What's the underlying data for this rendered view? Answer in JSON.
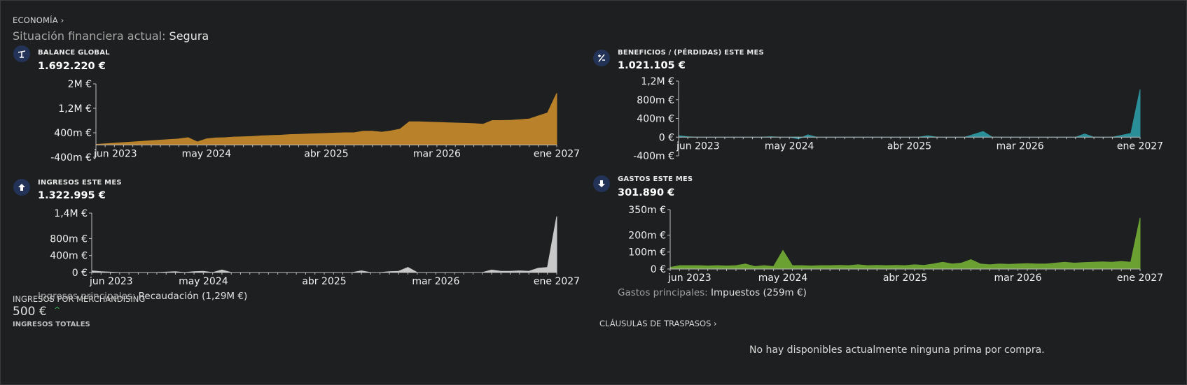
{
  "header": {
    "section_link": "ECONOMÍA ›"
  },
  "status": {
    "label": "Situación financiera actual: ",
    "value": "Segura"
  },
  "panels": {
    "balance": {
      "title": "BALANCE GLOBAL",
      "value": "1.692.220 €",
      "icon": "balance-scale-icon",
      "color": "#b9822a"
    },
    "profit": {
      "title": "BENEFICIOS / (PÉRDIDAS) ESTE MES",
      "value": "1.021.105 €",
      "icon": "plus-minus-icon",
      "color": "#2a8f98"
    },
    "income": {
      "title": "INGRESOS ESTE MES",
      "value": "1.322.995 €",
      "icon": "arrow-up-icon",
      "color": "#c8c8c8",
      "summary_label": "Ingresos principales: ",
      "summary_value": "Recaudación (1,29M €)"
    },
    "expenses": {
      "title": "GASTOS ESTE MES",
      "value": "301.890 €",
      "icon": "arrow-down-icon",
      "color": "#6ba033",
      "summary_label": "Gastos principales: ",
      "summary_value": "Impuestos (259m €)"
    }
  },
  "merchandising": {
    "title": "INGRESOS POR MERCHANDISING",
    "value": "500 €",
    "trend": "^",
    "subtitle": "INGRESOS TOTALES"
  },
  "clauses": {
    "link": "CLÁUSULAS DE TRASPASOS ›",
    "empty_message": "No hay disponibles actualmente ninguna prima por compra."
  },
  "chart_data": [
    {
      "id": "balance",
      "type": "area",
      "color": "#b9822a",
      "x_labels": [
        "jun 2023",
        "may 2024",
        "abr 2025",
        "mar 2026",
        "ene 2027"
      ],
      "y_ticks": [
        "2M €",
        "1,2M €",
        "400m €",
        "-400m €"
      ],
      "y_tick_values": [
        2000000,
        1200000,
        400000,
        -400000
      ],
      "ylim": [
        -400000,
        2000000
      ],
      "values": [
        20000,
        40000,
        60000,
        80000,
        100000,
        120000,
        140000,
        160000,
        180000,
        200000,
        240000,
        100000,
        200000,
        230000,
        240000,
        260000,
        270000,
        280000,
        300000,
        310000,
        320000,
        340000,
        350000,
        360000,
        370000,
        380000,
        390000,
        400000,
        400000,
        450000,
        450000,
        420000,
        460000,
        520000,
        760000,
        760000,
        750000,
        740000,
        730000,
        720000,
        710000,
        700000,
        680000,
        800000,
        800000,
        810000,
        830000,
        850000,
        950000,
        1050000,
        1692220
      ]
    },
    {
      "id": "profit",
      "type": "area",
      "color": "#2a8f98",
      "x_labels": [
        "jun 2023",
        "may 2024",
        "abr 2025",
        "mar 2026",
        "ene 2027"
      ],
      "y_ticks": [
        "1,2M €",
        "800m €",
        "400m €",
        "0 €",
        "-400m €"
      ],
      "y_tick_values": [
        1200000,
        800000,
        400000,
        0,
        -400000
      ],
      "ylim": [
        -400000,
        1200000
      ],
      "values": [
        30000,
        10000,
        0,
        0,
        0,
        0,
        0,
        0,
        0,
        0,
        10000,
        0,
        0,
        -40000,
        50000,
        0,
        0,
        0,
        0,
        0,
        0,
        0,
        0,
        0,
        0,
        0,
        0,
        30000,
        0,
        0,
        0,
        0,
        60000,
        120000,
        0,
        0,
        0,
        0,
        0,
        0,
        0,
        0,
        0,
        0,
        70000,
        0,
        0,
        0,
        40000,
        80000,
        1021105
      ]
    },
    {
      "id": "income",
      "type": "area",
      "color": "#c8c8c8",
      "x_labels": [
        "jun 2023",
        "may 2024",
        "abr 2025",
        "mar 2026",
        "ene 2027"
      ],
      "y_ticks": [
        "1,4M €",
        "800m €",
        "400m €",
        "0 €"
      ],
      "y_tick_values": [
        1400000,
        800000,
        400000,
        0
      ],
      "ylim": [
        0,
        1400000
      ],
      "values": [
        40000,
        20000,
        10000,
        0,
        0,
        0,
        0,
        0,
        10000,
        20000,
        0,
        20000,
        30000,
        0,
        60000,
        0,
        0,
        0,
        0,
        0,
        0,
        0,
        0,
        0,
        0,
        0,
        0,
        0,
        0,
        40000,
        0,
        0,
        20000,
        30000,
        120000,
        0,
        0,
        0,
        0,
        0,
        0,
        0,
        0,
        60000,
        30000,
        30000,
        40000,
        30000,
        100000,
        120000,
        1322995
      ]
    },
    {
      "id": "expenses",
      "type": "area",
      "color": "#6ba033",
      "x_labels": [
        "jun 2023",
        "may 2024",
        "abr 2025",
        "mar 2026",
        "ene 2027"
      ],
      "y_ticks": [
        "350m €",
        "200m €",
        "100m €",
        "0 €"
      ],
      "y_tick_values": [
        350000,
        200000,
        100000,
        0
      ],
      "ylim": [
        0,
        350000
      ],
      "values": [
        10000,
        20000,
        20000,
        20000,
        18000,
        20000,
        18000,
        20000,
        30000,
        15000,
        20000,
        15000,
        110000,
        20000,
        20000,
        18000,
        20000,
        20000,
        22000,
        20000,
        25000,
        20000,
        22000,
        20000,
        22000,
        20000,
        25000,
        22000,
        30000,
        40000,
        30000,
        35000,
        55000,
        30000,
        25000,
        30000,
        28000,
        30000,
        32000,
        30000,
        30000,
        35000,
        40000,
        35000,
        38000,
        40000,
        42000,
        40000,
        45000,
        40000,
        301890
      ]
    }
  ]
}
